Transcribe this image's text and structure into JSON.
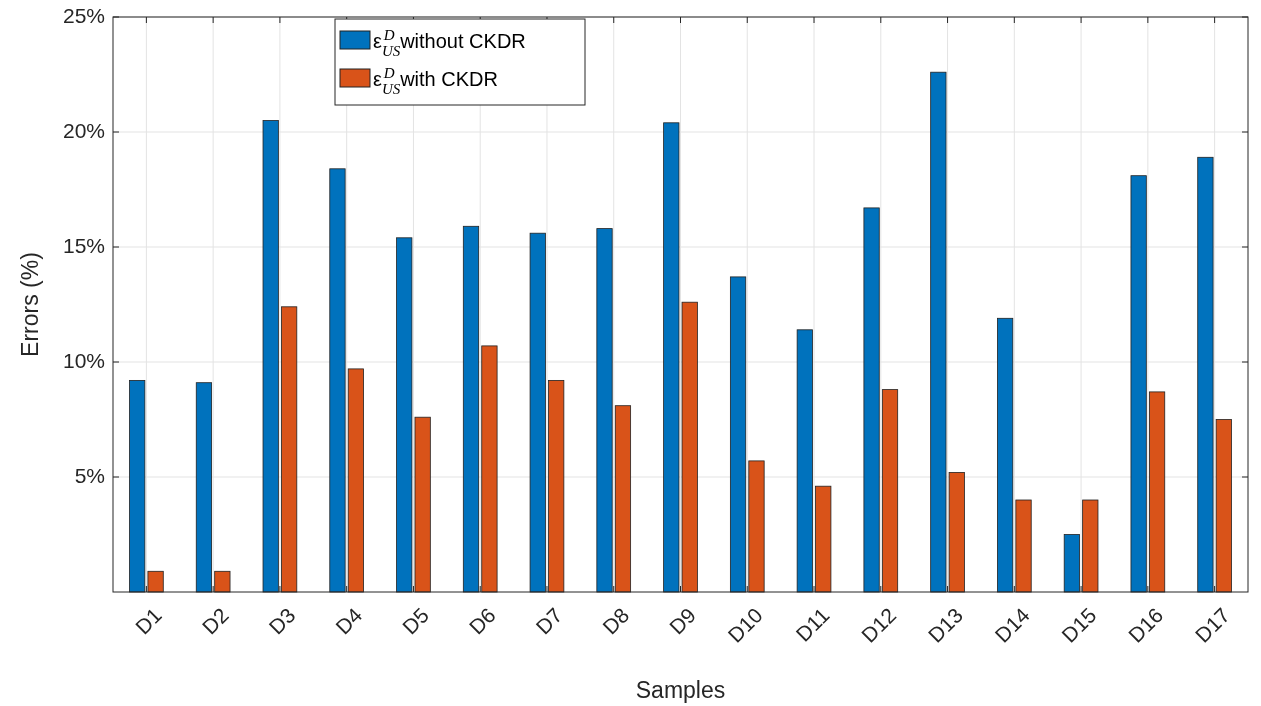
{
  "chart_data": {
    "type": "bar",
    "xlabel": "Samples",
    "ylabel": "Errors (%)",
    "categories": [
      "D1",
      "D2",
      "D3",
      "D4",
      "D5",
      "D6",
      "D7",
      "D8",
      "D9",
      "D10",
      "D11",
      "D12",
      "D13",
      "D14",
      "D15",
      "D16",
      "D17"
    ],
    "series": [
      {
        "name": "ε$_{US}$$^{D}$ without CKDR",
        "color": "#0072bd",
        "values": [
          9.2,
          9.1,
          20.5,
          18.4,
          15.4,
          15.9,
          15.6,
          15.8,
          20.4,
          13.7,
          11.4,
          16.7,
          22.6,
          11.9,
          2.5,
          18.1,
          18.9
        ]
      },
      {
        "name": "ε$_{US}$$^{D}$ with CKDR",
        "color": "#d95319",
        "values": [
          0.9,
          0.9,
          12.4,
          9.7,
          7.6,
          10.7,
          9.2,
          8.1,
          12.6,
          5.7,
          4.6,
          8.8,
          5.2,
          4.0,
          4.0,
          8.7,
          7.5
        ]
      }
    ],
    "ylim": [
      0,
      25
    ],
    "yticks": [
      {
        "value": 5,
        "label": "5%"
      },
      {
        "value": 10,
        "label": "10%"
      },
      {
        "value": 15,
        "label": "15%"
      },
      {
        "value": 20,
        "label": "20%"
      },
      {
        "value": 25,
        "label": "25%"
      }
    ],
    "grid": true,
    "legend": "top left"
  }
}
